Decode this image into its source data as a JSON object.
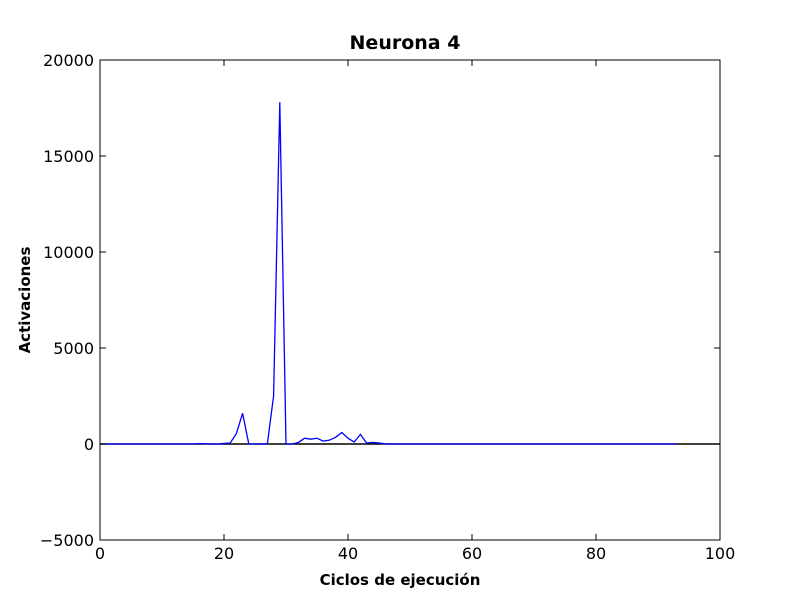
{
  "chart_data": {
    "type": "line",
    "title": "Neurona 4",
    "xlabel": "Ciclos de ejecución",
    "ylabel": "Activaciones",
    "xlim": [
      0,
      100
    ],
    "ylim": [
      -5000,
      20000
    ],
    "xticks": [
      0,
      20,
      40,
      60,
      80,
      100
    ],
    "yticks": [
      -5000,
      0,
      5000,
      10000,
      15000,
      20000
    ],
    "xtick_labels": [
      "0",
      "20",
      "40",
      "60",
      "80",
      "100"
    ],
    "ytick_labels": [
      "−5000",
      "0",
      "5000",
      "10000",
      "15000",
      "20000"
    ],
    "grid": false,
    "legend": "none",
    "series_color": "#0000ff",
    "zero_line_color": "#000000",
    "series": [
      {
        "x": [
          0,
          5,
          10,
          15,
          16,
          18,
          19,
          20,
          21,
          22,
          23,
          24,
          25,
          26,
          27,
          28,
          29,
          30,
          31,
          32,
          33,
          34,
          35,
          36,
          37,
          38,
          39,
          40,
          41,
          42,
          43,
          44,
          45,
          46,
          47,
          50,
          60,
          70,
          80,
          90,
          93
        ],
        "y": [
          0,
          0,
          0,
          0,
          20,
          0,
          0,
          30,
          50,
          550,
          1600,
          0,
          0,
          0,
          20,
          2500,
          17800,
          0,
          0,
          80,
          300,
          250,
          300,
          150,
          200,
          350,
          600,
          300,
          100,
          500,
          50,
          80,
          50,
          10,
          0,
          0,
          0,
          0,
          0,
          0,
          0
        ]
      }
    ]
  }
}
